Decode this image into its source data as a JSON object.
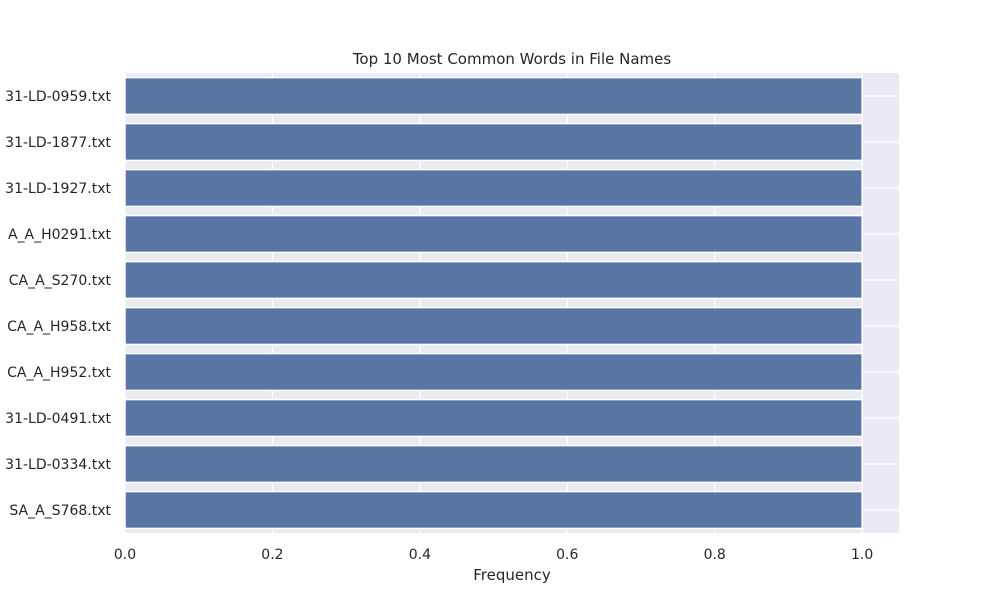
{
  "chart_data": {
    "type": "bar",
    "orientation": "horizontal",
    "title": "Top 10 Most Common Words in File Names",
    "xlabel": "Frequency",
    "ylabel": "",
    "categories": [
      "31-LD-0959.txt",
      "31-LD-1877.txt",
      "31-LD-1927.txt",
      "A_A_H0291.txt",
      "CA_A_S270.txt",
      "CA_A_H958.txt",
      "CA_A_H952.txt",
      "31-LD-0491.txt",
      "31-LD-0334.txt",
      "SA_A_S768.txt"
    ],
    "values": [
      1,
      1,
      1,
      1,
      1,
      1,
      1,
      1,
      1,
      1
    ],
    "xlim": [
      0,
      1.05
    ],
    "xticks": [
      "0.0",
      "0.2",
      "0.4",
      "0.6",
      "0.8",
      "1.0"
    ],
    "grid": true,
    "legend": "none"
  },
  "colors": {
    "bar": "#5975a4",
    "plot_background": "#eaeaf2",
    "grid": "#ffffff",
    "text": "#262626"
  }
}
